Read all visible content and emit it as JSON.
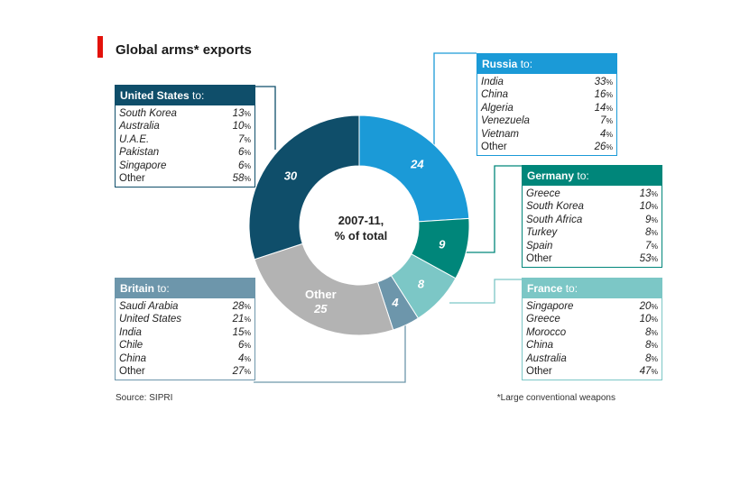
{
  "title": "Global arms* exports",
  "source": "Source: SIPRI",
  "footnote": "*Large conventional weapons",
  "center_label": {
    "line1": "2007-11,",
    "line2": "% of total"
  },
  "colors": {
    "russia": "#1b9ad7",
    "germany": "#00867a",
    "france": "#7cc7c6",
    "britain": "#6d96ab",
    "other": "#b3b3b3",
    "us": "#0f4e6a",
    "accent": "#e3120b"
  },
  "chart_data": {
    "type": "pie",
    "variant": "donut",
    "center_text": "2007-11, % of total",
    "slices": [
      {
        "label": "Russia",
        "value": 24,
        "color": "#1b9ad7"
      },
      {
        "label": "Germany",
        "value": 9,
        "color": "#00867a"
      },
      {
        "label": "France",
        "value": 8,
        "color": "#7cc7c6"
      },
      {
        "label": "Britain",
        "value": 4,
        "color": "#6d96ab"
      },
      {
        "label": "Other",
        "value": 25,
        "color": "#b3b3b3"
      },
      {
        "label": "United States",
        "value": 30,
        "color": "#0f4e6a"
      }
    ],
    "breakdowns": {
      "russia": {
        "name": "Russia",
        "suffix": " to:",
        "rows": [
          {
            "country": "India",
            "pct": "33"
          },
          {
            "country": "China",
            "pct": "16"
          },
          {
            "country": "Algeria",
            "pct": "14"
          },
          {
            "country": "Venezuela",
            "pct": "7"
          },
          {
            "country": "Vietnam",
            "pct": "4"
          },
          {
            "country": "Other",
            "pct": "26"
          }
        ]
      },
      "germany": {
        "name": "Germany",
        "suffix": " to:",
        "rows": [
          {
            "country": "Greece",
            "pct": "13"
          },
          {
            "country": "South Korea",
            "pct": "10"
          },
          {
            "country": "South Africa",
            "pct": "9"
          },
          {
            "country": "Turkey",
            "pct": "8"
          },
          {
            "country": "Spain",
            "pct": "7"
          },
          {
            "country": "Other",
            "pct": "53"
          }
        ]
      },
      "france": {
        "name": "France",
        "suffix": " to:",
        "rows": [
          {
            "country": "Singapore",
            "pct": "20"
          },
          {
            "country": "Greece",
            "pct": "10"
          },
          {
            "country": "Morocco",
            "pct": "8"
          },
          {
            "country": "China",
            "pct": "8"
          },
          {
            "country": "Australia",
            "pct": "8"
          },
          {
            "country": "Other",
            "pct": "47"
          }
        ]
      },
      "britain": {
        "name": "Britain",
        "suffix": " to:",
        "rows": [
          {
            "country": "Saudi Arabia",
            "pct": "28"
          },
          {
            "country": "United States",
            "pct": "21"
          },
          {
            "country": "India",
            "pct": "15"
          },
          {
            "country": "Chile",
            "pct": "6"
          },
          {
            "country": "China",
            "pct": "4"
          },
          {
            "country": "Other",
            "pct": "27"
          }
        ]
      },
      "us": {
        "name": "United States",
        "suffix": " to:",
        "rows": [
          {
            "country": "South Korea",
            "pct": "13"
          },
          {
            "country": "Australia",
            "pct": "10"
          },
          {
            "country": "U.A.E.",
            "pct": "7"
          },
          {
            "country": "Pakistan",
            "pct": "6"
          },
          {
            "country": "Singapore",
            "pct": "6"
          },
          {
            "country": "Other",
            "pct": "58"
          }
        ]
      }
    }
  }
}
